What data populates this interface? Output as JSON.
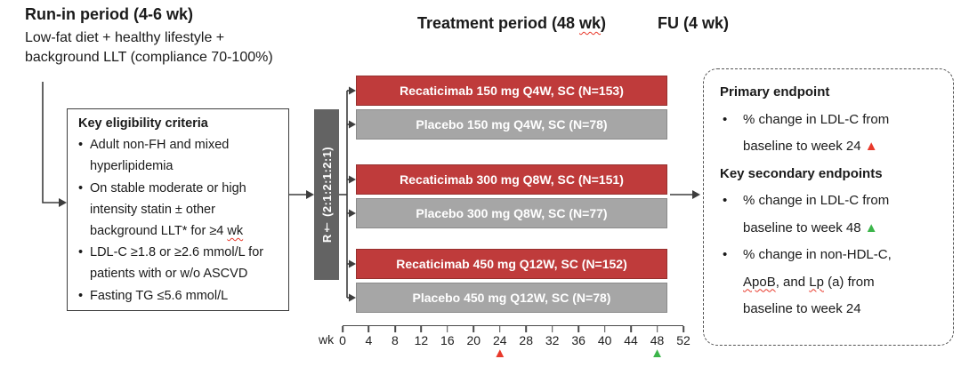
{
  "colors": {
    "active_bar": "#bf3b3b",
    "placebo_bar": "#a6a6a6",
    "randomization_bar": "#636363",
    "marker_red": "#e8392b",
    "marker_green": "#3bb54a"
  },
  "headers": {
    "runin_title": "Run-in period (4-6 wk)",
    "runin_subtitle_line1": "Low-fat diet + healthy lifestyle +",
    "runin_subtitle_line2": "background LLT (compliance 70-100%)",
    "treatment_title_pre": "Treatment period (48 ",
    "treatment_title_wavy": "wk",
    "treatment_title_post": ")",
    "fu_title": "FU (4 wk)"
  },
  "eligibility": {
    "title": "Key eligibility criteria",
    "b1_l1": "Adult non-FH and mixed",
    "b1_l2": "hyperlipidemia",
    "b2_l1": "On stable moderate or high",
    "b2_l2": "intensity statin ± other",
    "b2_l3_pre": "background LLT* for ≥4 ",
    "b2_l3_wavy": "wk",
    "b3_l1": "LDL-C ≥1.8 or ≥2.6 mmol/L for",
    "b3_l2": "patients with or w/o ASCVD",
    "b4": "Fasting TG ≤5.6 mmol/L"
  },
  "randomization": {
    "label": "R† (2:1:2:1:2:1)"
  },
  "arms": [
    {
      "label": "Recaticimab 150 mg Q4W, SC (N=153)",
      "type": "active"
    },
    {
      "label": "Placebo 150 mg Q4W, SC (N=78)",
      "type": "placebo"
    },
    {
      "label": "Recaticimab 300 mg Q8W, SC (N=151)",
      "type": "active"
    },
    {
      "label": "Placebo 300 mg Q8W, SC (N=77)",
      "type": "placebo"
    },
    {
      "label": "Recaticimab 450 mg Q12W, SC (N=152)",
      "type": "active"
    },
    {
      "label": "Placebo 450 mg Q12W, SC (N=78)",
      "type": "placebo"
    }
  ],
  "axis": {
    "unit_label": "wk",
    "ticks": [
      "0",
      "4",
      "8",
      "12",
      "16",
      "20",
      "24",
      "28",
      "32",
      "36",
      "40",
      "44",
      "48",
      "52"
    ],
    "red_marker_week": "24",
    "green_marker_week": "48",
    "marker_glyph": "▲"
  },
  "endpoints": {
    "primary_title": "Primary endpoint",
    "primary_b1_l1": "% change in LDL-C from",
    "primary_b1_l2": "baseline to week 24 ",
    "secondary_title": "Key secondary endpoints",
    "secondary_b1_l1": "% change in LDL-C from",
    "secondary_b1_l2": "baseline to week 48 ",
    "secondary_b2_l1": "% change in non-HDL-C,",
    "secondary_b2_l2_apob": "ApoB",
    "secondary_b2_l2_mid": ", and ",
    "secondary_b2_l2_lp": "Lp",
    "secondary_b2_l2_post": " (a) from",
    "secondary_b2_l3": "baseline to week 24",
    "marker_glyph": "▲"
  }
}
